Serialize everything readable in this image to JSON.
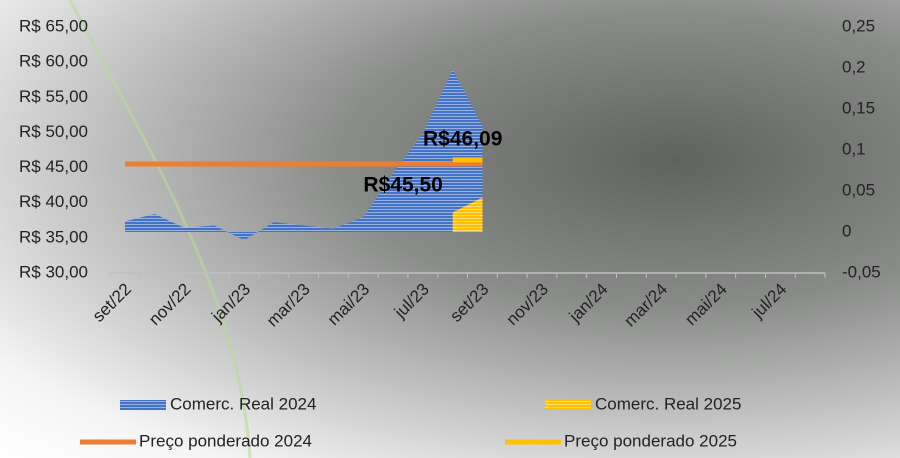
{
  "chart_data": {
    "type": "area-line",
    "categories": [
      "set/22",
      null,
      "nov/22",
      null,
      "jan/23",
      null,
      "mar/23",
      null,
      "mai/23",
      null,
      "jul/23",
      null,
      "set/23",
      null,
      "nov/23",
      null,
      "jan/24",
      null,
      "mar/24",
      null,
      "mai/24",
      null,
      "jul/24",
      null
    ],
    "ylim": [
      30,
      65
    ],
    "yticks": [
      {
        "value": 30,
        "label": "R$ 30,00"
      },
      {
        "value": 35,
        "label": "R$ 35,00"
      },
      {
        "value": 40,
        "label": "R$ 40,00"
      },
      {
        "value": 45,
        "label": "R$ 45,00"
      },
      {
        "value": 50,
        "label": "R$ 50,00"
      },
      {
        "value": 55,
        "label": "R$ 55,00"
      },
      {
        "value": 60,
        "label": "R$ 60,00"
      },
      {
        "value": 65,
        "label": "R$ 65,00"
      }
    ],
    "y2lim": [
      -0.05,
      0.25
    ],
    "y2ticks": [
      {
        "value": -0.05,
        "label": "-0,05"
      },
      0,
      {
        "value": 0.05,
        "label": "0,05"
      },
      {
        "value": 0.1,
        "label": "0,1"
      },
      {
        "value": 0.15,
        "label": "0,15"
      },
      {
        "value": 0.2,
        "label": "0,2"
      },
      {
        "value": 0.25,
        "label": "0,25"
      }
    ],
    "legend": "bottom",
    "series": [
      {
        "name": "Comerc. Real 2024",
        "kind": "area",
        "axis": "y2",
        "color": "#4472c4",
        "values": [
          0.013,
          0.022,
          0.005,
          0.008,
          -0.01,
          0.012,
          0.008,
          0.004,
          0.018,
          0.072,
          0.12,
          0.198,
          0.129,
          null,
          null,
          null,
          null,
          null,
          null,
          null,
          null,
          null,
          null,
          null
        ]
      },
      {
        "name": "Comerc. Real 2025",
        "kind": "area",
        "axis": "y2",
        "color": "#ffc000",
        "values": [
          null,
          null,
          null,
          null,
          null,
          null,
          null,
          null,
          null,
          null,
          null,
          0.024,
          0.042,
          null,
          null,
          null,
          null,
          null,
          null,
          null,
          null,
          null,
          null,
          null
        ]
      },
      {
        "name": "Preço ponderado 2024",
        "kind": "line",
        "color": "#ed7d31",
        "values": [
          45.5,
          45.5,
          45.5,
          45.5,
          45.5,
          45.5,
          45.5,
          45.5,
          45.5,
          45.5,
          45.5,
          45.5,
          45.5,
          null,
          null,
          null,
          null,
          null,
          null,
          null,
          null,
          null,
          null,
          null
        ],
        "value_labels": [
          null,
          null,
          null,
          null,
          null,
          null,
          null,
          null,
          null,
          "R$45,50",
          null,
          null,
          null,
          null,
          null,
          null,
          null,
          null,
          null,
          null,
          null,
          null,
          null,
          null
        ]
      },
      {
        "name": "Preço ponderado 2025",
        "kind": "line",
        "color": "#ffc000",
        "values": [
          null,
          null,
          null,
          null,
          null,
          null,
          null,
          null,
          null,
          null,
          null,
          46.09,
          46.09,
          null,
          null,
          null,
          null,
          null,
          null,
          null,
          null,
          null,
          null,
          null
        ],
        "value_labels": [
          null,
          null,
          null,
          null,
          null,
          null,
          null,
          null,
          null,
          null,
          null,
          "R$46,09",
          null,
          null,
          null,
          null,
          null,
          null,
          null,
          null,
          null,
          null,
          null,
          null
        ]
      }
    ]
  }
}
